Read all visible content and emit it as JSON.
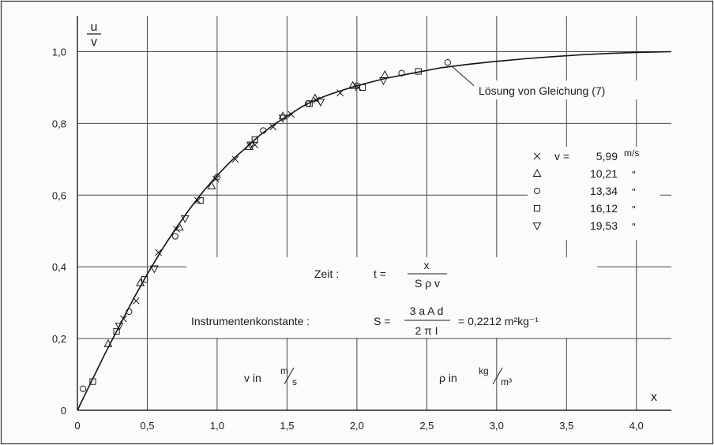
{
  "chart_data": {
    "type": "scatter",
    "xlabel": "x",
    "ylabel_top": "u",
    "ylabel_bottom": "v",
    "xlim": [
      0,
      4.25
    ],
    "ylim": [
      0,
      1.1
    ],
    "x_ticks": [
      "0",
      "0,5",
      "1,0",
      "1,5",
      "2,0",
      "2,5",
      "3,0",
      "3,5",
      "4,0"
    ],
    "x_tick_values": [
      0,
      0.5,
      1.0,
      1.5,
      2.0,
      2.5,
      3.0,
      3.5,
      4.0
    ],
    "y_ticks": [
      "0",
      "0,2",
      "0,4",
      "0,6",
      "0,8",
      "1,0"
    ],
    "y_tick_values": [
      0,
      0.2,
      0.4,
      0.6,
      0.8,
      1.0
    ],
    "x_gridlines": [
      0.5,
      1.0,
      1.5,
      2.0,
      2.5,
      3.0,
      3.5,
      4.0
    ],
    "y_gridlines": [
      0.2,
      0.4,
      0.6,
      0.8,
      1.0
    ],
    "grid": true,
    "curve": {
      "label": "Lösung von Gleichung (7)",
      "x": [
        0.0,
        0.05,
        0.1,
        0.2,
        0.3,
        0.4,
        0.5,
        0.6,
        0.7,
        0.8,
        0.9,
        1.0,
        1.1,
        1.2,
        1.3,
        1.4,
        1.5,
        1.6,
        1.7,
        1.8,
        1.9,
        2.0,
        2.2,
        2.4,
        2.6,
        2.8,
        3.0,
        3.2,
        3.4,
        3.6,
        3.8,
        4.0,
        4.25
      ],
      "y": [
        0.0,
        0.04,
        0.08,
        0.16,
        0.235,
        0.31,
        0.38,
        0.445,
        0.505,
        0.56,
        0.61,
        0.655,
        0.695,
        0.73,
        0.765,
        0.795,
        0.82,
        0.845,
        0.865,
        0.88,
        0.893,
        0.905,
        0.925,
        0.94,
        0.955,
        0.965,
        0.973,
        0.98,
        0.986,
        0.991,
        0.995,
        0.998,
        1.0
      ]
    },
    "legend": {
      "title": "v =",
      "unit": "m/s",
      "ditto": "\"",
      "placement": "right",
      "entries": [
        {
          "marker": "x",
          "label": "5,99"
        },
        {
          "marker": "triangle-up",
          "label": "10,21"
        },
        {
          "marker": "circle",
          "label": "13,34"
        },
        {
          "marker": "square",
          "label": "16,12"
        },
        {
          "marker": "triangle-down",
          "label": "19,53"
        }
      ]
    },
    "series": [
      {
        "marker": "x",
        "x": [
          0.33,
          0.42,
          0.58,
          0.71,
          0.86,
          0.99,
          1.13,
          1.27,
          1.4,
          1.53,
          1.71,
          1.88,
          2.01
        ],
        "y": [
          0.255,
          0.305,
          0.44,
          0.505,
          0.585,
          0.645,
          0.7,
          0.74,
          0.79,
          0.825,
          0.865,
          0.885,
          0.9
        ]
      },
      {
        "marker": "triangle-up",
        "x": [
          0.22,
          0.45,
          0.73,
          0.96,
          1.23,
          1.47,
          1.7,
          1.97,
          2.2
        ],
        "y": [
          0.185,
          0.355,
          0.51,
          0.625,
          0.735,
          0.82,
          0.87,
          0.905,
          0.935
        ]
      },
      {
        "marker": "circle",
        "x": [
          0.04,
          0.37,
          0.7,
          1.0,
          1.33,
          1.65,
          2.0,
          2.32,
          2.65
        ],
        "y": [
          0.06,
          0.275,
          0.485,
          0.65,
          0.78,
          0.855,
          0.905,
          0.94,
          0.97
        ]
      },
      {
        "marker": "square",
        "x": [
          0.11,
          0.28,
          0.48,
          0.88,
          1.27,
          1.66,
          2.04,
          2.44
        ],
        "y": [
          0.08,
          0.22,
          0.365,
          0.585,
          0.755,
          0.855,
          0.9,
          0.945
        ]
      },
      {
        "marker": "triangle-down",
        "x": [
          0.3,
          0.55,
          0.77,
          1.24,
          1.47,
          1.74,
          2.19
        ],
        "y": [
          0.235,
          0.395,
          0.535,
          0.74,
          0.815,
          0.86,
          0.92
        ]
      }
    ],
    "annotations": {
      "zeit_label": "Zeit :",
      "zeit_lhs": "t =",
      "zeit_num": "x",
      "zeit_den": "S ρ v",
      "inst_label": "Instrumentenkonstante :",
      "inst_lhs": "S =",
      "inst_num": "3 a A d",
      "inst_den": "2 π I",
      "inst_rhs": "= 0,2212 m²kg⁻¹",
      "v_unit_prefix": "v in",
      "v_unit_num": "m",
      "v_unit_den": "s",
      "rho_unit_prefix": "ρ in",
      "rho_unit_num": "kg",
      "rho_unit_den": "m³"
    }
  }
}
